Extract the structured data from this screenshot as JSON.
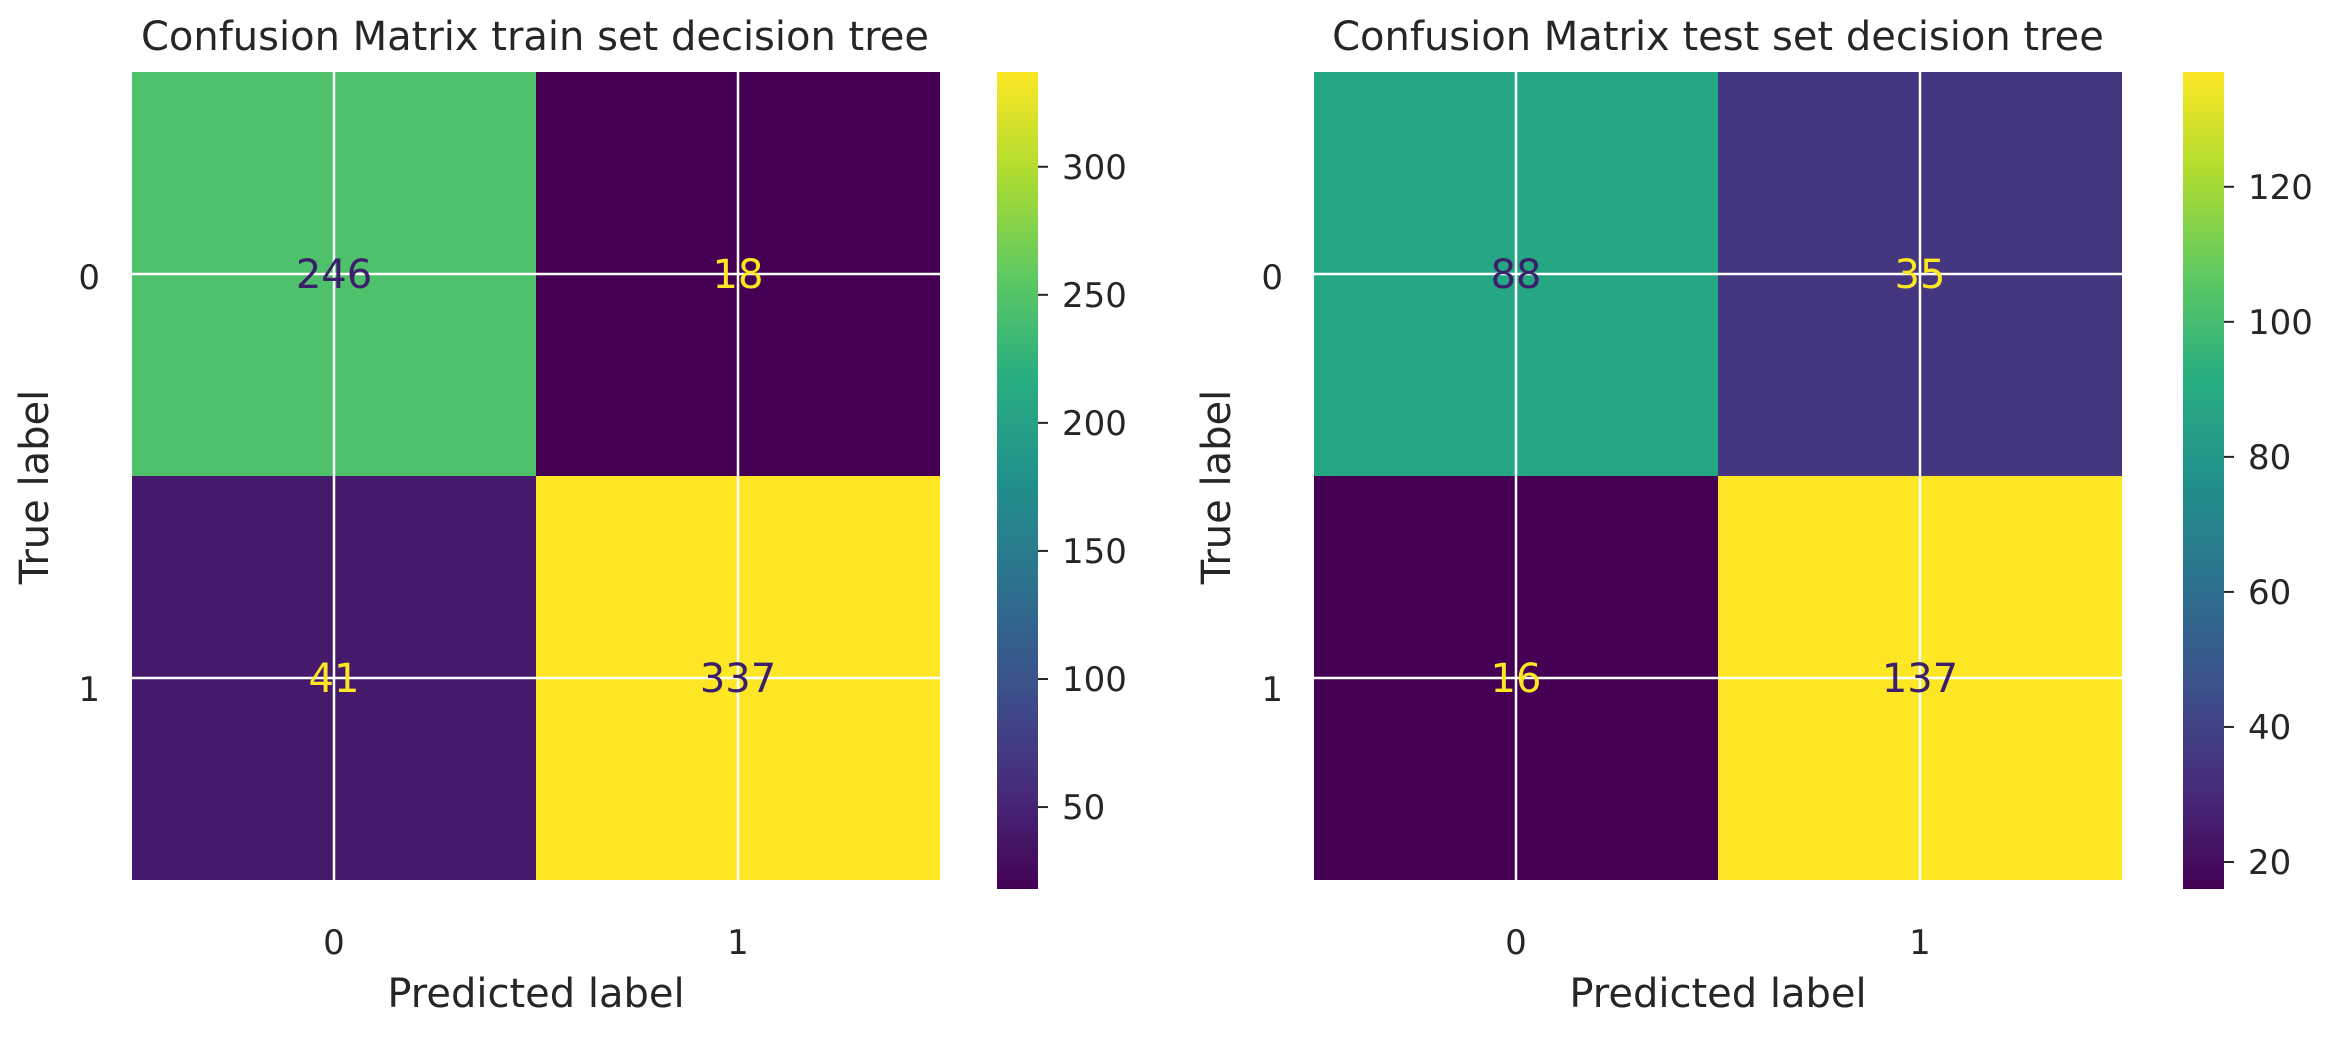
{
  "chart_data": [
    {
      "type": "heatmap",
      "title": "Confusion Matrix train set decision tree",
      "xlabel": "Predicted label",
      "ylabel": "True label",
      "x_ticks": [
        "0",
        "1"
      ],
      "y_ticks": [
        "0",
        "1"
      ],
      "values": [
        [
          246,
          18
        ],
        [
          41,
          337
        ]
      ],
      "colormap": "viridis",
      "color_range": [
        18,
        337
      ],
      "colorbar_ticks": [
        50,
        100,
        150,
        200,
        250,
        300
      ],
      "grid": true
    },
    {
      "type": "heatmap",
      "title": "Confusion Matrix test set decision tree",
      "xlabel": "Predicted label",
      "ylabel": "True label",
      "x_ticks": [
        "0",
        "1"
      ],
      "y_ticks": [
        "0",
        "1"
      ],
      "values": [
        [
          88,
          35
        ],
        [
          16,
          137
        ]
      ],
      "colormap": "viridis",
      "color_range": [
        16,
        137
      ],
      "colorbar_ticks": [
        20,
        40,
        60,
        80,
        100,
        120
      ],
      "grid": true
    }
  ],
  "colors": {
    "text": "#262626",
    "grid": "#ffffff",
    "cell_text_dark": "#3b1f6b",
    "cell_text_light": "#fde725"
  }
}
